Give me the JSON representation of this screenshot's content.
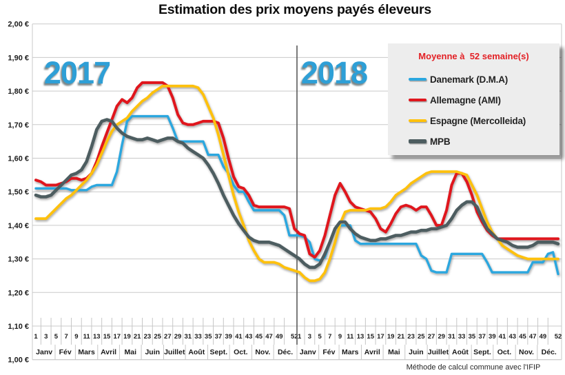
{
  "page": {
    "title": "Estimation des prix moyens payés éleveurs",
    "footer": "Méthode de calcul commune avec l'IFIP"
  },
  "year_labels": [
    "2017",
    "2018"
  ],
  "legend": {
    "title": "Moyenne à  52 semaine(s)",
    "items": [
      {
        "label": "Danemark (D.M.A)",
        "color": "#2BA7DF"
      },
      {
        "label": "Allemagne (AMI)",
        "color": "#E0161D"
      },
      {
        "label": "Espagne (Mercolleida)",
        "color": "#FEC10D"
      },
      {
        "label": "MPB",
        "color": "#4D5D60"
      }
    ]
  },
  "axis": {
    "y_labels": [
      "2,00 €",
      "1,90 €",
      "1,80 €",
      "1,70 €",
      "1,60 €",
      "1,50 €",
      "1,40 €",
      "1,30 €",
      "1,20 €",
      "1,10 €",
      "1,00 €"
    ],
    "week_ticks": [
      1,
      3,
      5,
      7,
      9,
      11,
      13,
      15,
      17,
      19,
      21,
      23,
      25,
      27,
      29,
      31,
      33,
      35,
      37,
      39,
      41,
      43,
      45,
      47,
      49,
      52
    ],
    "months": [
      "Janv",
      "Fév",
      "Mars",
      "Avril",
      "Mai",
      "Juin",
      "Juillet",
      "Août",
      "Sept.",
      "Oct.",
      "Nov.",
      "Déc."
    ]
  },
  "chart_data": {
    "type": "line",
    "title": "Estimation des prix moyens payés éleveurs",
    "x_unit": "semaine (1-52, années 2017 et 2018)",
    "ylim": [
      1.0,
      2.0
    ],
    "ytick_step": 0.1,
    "grid": "horizontal",
    "legend_position": "top-right",
    "series": [
      {
        "id": "danemark",
        "name": "Danemark (D.M.A)",
        "color": "#2BA7DF",
        "y2017": [
          1.51,
          1.51,
          1.51,
          1.51,
          1.51,
          1.51,
          1.51,
          1.505,
          1.505,
          1.505,
          1.505,
          1.515,
          1.52,
          1.52,
          1.52,
          1.52,
          1.56,
          1.64,
          1.71,
          1.725,
          1.725,
          1.725,
          1.725,
          1.725,
          1.725,
          1.725,
          1.725,
          1.69,
          1.65,
          1.65,
          1.65,
          1.65,
          1.65,
          1.65,
          1.61,
          1.61,
          1.61,
          1.575,
          1.555,
          1.52,
          1.5,
          1.5,
          1.47,
          1.445,
          1.445,
          1.445,
          1.445,
          1.445,
          1.445,
          1.43,
          1.37,
          1.37
        ],
        "y2018": [
          1.37,
          1.365,
          1.35,
          1.3,
          1.295,
          1.305,
          1.35,
          1.39,
          1.4,
          1.4,
          1.4,
          1.355,
          1.345,
          1.345,
          1.345,
          1.345,
          1.345,
          1.345,
          1.345,
          1.345,
          1.345,
          1.345,
          1.345,
          1.345,
          1.31,
          1.3,
          1.265,
          1.26,
          1.26,
          1.26,
          1.315,
          1.315,
          1.315,
          1.315,
          1.315,
          1.315,
          1.315,
          1.29,
          1.26,
          1.26,
          1.26,
          1.26,
          1.26,
          1.26,
          1.26,
          1.26,
          1.29,
          1.29,
          1.29,
          1.315,
          1.32,
          1.255
        ]
      },
      {
        "id": "allemagne",
        "name": "Allemagne (AMI)",
        "color": "#E0161D",
        "y2017": [
          1.535,
          1.53,
          1.52,
          1.52,
          1.52,
          1.525,
          1.53,
          1.54,
          1.54,
          1.535,
          1.54,
          1.555,
          1.59,
          1.635,
          1.675,
          1.715,
          1.755,
          1.775,
          1.765,
          1.78,
          1.81,
          1.825,
          1.825,
          1.825,
          1.825,
          1.825,
          1.815,
          1.78,
          1.73,
          1.705,
          1.7,
          1.7,
          1.705,
          1.71,
          1.71,
          1.71,
          1.705,
          1.66,
          1.6,
          1.545,
          1.515,
          1.51,
          1.49,
          1.46,
          1.455,
          1.455,
          1.455,
          1.455,
          1.455,
          1.455,
          1.45,
          1.39
        ],
        "y2018": [
          1.375,
          1.37,
          1.315,
          1.305,
          1.325,
          1.37,
          1.43,
          1.49,
          1.525,
          1.5,
          1.47,
          1.455,
          1.45,
          1.445,
          1.44,
          1.42,
          1.39,
          1.38,
          1.405,
          1.435,
          1.455,
          1.46,
          1.455,
          1.445,
          1.455,
          1.455,
          1.43,
          1.4,
          1.4,
          1.445,
          1.52,
          1.555,
          1.555,
          1.53,
          1.49,
          1.44,
          1.41,
          1.385,
          1.37,
          1.36,
          1.36,
          1.36,
          1.36,
          1.36,
          1.36,
          1.36,
          1.36,
          1.36,
          1.36,
          1.36,
          1.36,
          1.36
        ]
      },
      {
        "id": "espagne",
        "name": "Espagne (Mercolleida)",
        "color": "#FEC10D",
        "y2017": [
          1.42,
          1.42,
          1.42,
          1.435,
          1.45,
          1.465,
          1.48,
          1.49,
          1.505,
          1.52,
          1.535,
          1.555,
          1.58,
          1.615,
          1.65,
          1.68,
          1.7,
          1.71,
          1.72,
          1.74,
          1.755,
          1.77,
          1.78,
          1.795,
          1.805,
          1.815,
          1.815,
          1.815,
          1.815,
          1.815,
          1.815,
          1.815,
          1.81,
          1.79,
          1.755,
          1.72,
          1.67,
          1.61,
          1.55,
          1.49,
          1.44,
          1.4,
          1.355,
          1.325,
          1.3,
          1.29,
          1.29,
          1.29,
          1.285,
          1.275,
          1.27,
          1.265
        ],
        "y2018": [
          1.26,
          1.245,
          1.235,
          1.235,
          1.24,
          1.26,
          1.3,
          1.35,
          1.405,
          1.44,
          1.445,
          1.445,
          1.445,
          1.445,
          1.45,
          1.45,
          1.45,
          1.455,
          1.47,
          1.49,
          1.5,
          1.51,
          1.525,
          1.535,
          1.545,
          1.555,
          1.56,
          1.56,
          1.56,
          1.56,
          1.56,
          1.56,
          1.555,
          1.55,
          1.52,
          1.49,
          1.45,
          1.41,
          1.38,
          1.36,
          1.34,
          1.33,
          1.32,
          1.31,
          1.305,
          1.3,
          1.3,
          1.3,
          1.3,
          1.3,
          1.3,
          1.3
        ]
      },
      {
        "id": "mpb",
        "name": "MPB",
        "color": "#4D5D60",
        "y2017": [
          1.49,
          1.485,
          1.485,
          1.49,
          1.505,
          1.52,
          1.535,
          1.55,
          1.555,
          1.565,
          1.59,
          1.635,
          1.685,
          1.71,
          1.715,
          1.71,
          1.69,
          1.675,
          1.665,
          1.66,
          1.655,
          1.655,
          1.66,
          1.655,
          1.65,
          1.655,
          1.66,
          1.66,
          1.65,
          1.645,
          1.63,
          1.62,
          1.61,
          1.6,
          1.58,
          1.555,
          1.525,
          1.49,
          1.46,
          1.43,
          1.405,
          1.385,
          1.365,
          1.355,
          1.35,
          1.35,
          1.35,
          1.345,
          1.34,
          1.33,
          1.32,
          1.31
        ],
        "y2018": [
          1.3,
          1.285,
          1.275,
          1.275,
          1.285,
          1.315,
          1.35,
          1.39,
          1.41,
          1.41,
          1.39,
          1.375,
          1.365,
          1.36,
          1.355,
          1.355,
          1.36,
          1.36,
          1.365,
          1.37,
          1.37,
          1.375,
          1.38,
          1.38,
          1.385,
          1.385,
          1.39,
          1.39,
          1.395,
          1.4,
          1.42,
          1.445,
          1.46,
          1.47,
          1.47,
          1.455,
          1.42,
          1.39,
          1.375,
          1.36,
          1.355,
          1.35,
          1.34,
          1.335,
          1.335,
          1.335,
          1.34,
          1.35,
          1.35,
          1.35,
          1.35,
          1.345
        ]
      }
    ]
  }
}
